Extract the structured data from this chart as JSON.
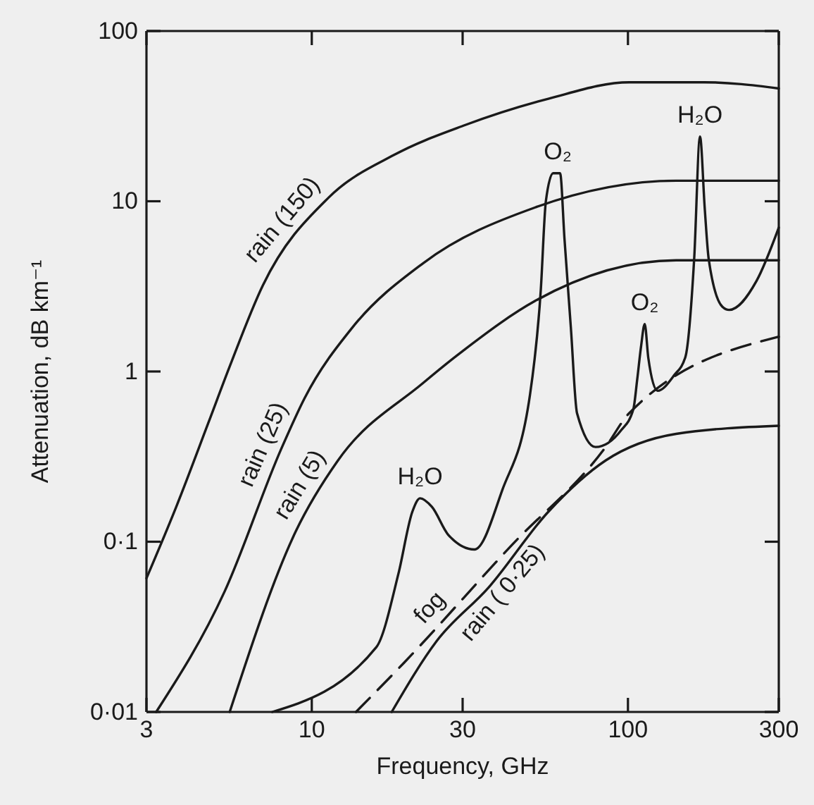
{
  "chart_data": {
    "type": "line",
    "xlabel": "Frequency, GHz",
    "ylabel": "Attenuation, dB km⁻¹",
    "log": "xy",
    "grid": false,
    "xlim": [
      3,
      300
    ],
    "xticks": [
      3,
      10,
      30,
      100,
      300
    ],
    "ylim": [
      0.01,
      100
    ],
    "yticks": [
      {
        "value": 0.01,
        "label": "0·01"
      },
      {
        "value": 0.1,
        "label": "0·1"
      },
      1,
      10,
      100
    ],
    "series": [
      {
        "name": "rain (150)",
        "color": "#1a1a1a",
        "x": [
          3,
          3.72,
          4.71,
          5.5,
          7.0,
          11.3,
          18.2,
          30.5,
          56,
          101,
          174,
          300
        ],
        "values": [
          0.061,
          0.159,
          0.5,
          1.07,
          3.2,
          10.5,
          18.7,
          28,
          40,
          50,
          50,
          46
        ]
      },
      {
        "name": "rain (25)",
        "color": "#1a1a1a",
        "x": [
          3.22,
          5.3,
          8.0,
          9.5,
          13.4,
          22.4,
          50.9,
          142,
          300
        ],
        "values": [
          0.01,
          0.051,
          0.35,
          0.7,
          1.8,
          4.3,
          9.2,
          13.2,
          13.2
        ]
      },
      {
        "name": "rain (5)",
        "color": "#1a1a1a",
        "x": [
          5.5,
          8.9,
          12.1,
          22.4,
          30.5,
          50.9,
          142,
          300
        ],
        "values": [
          0.01,
          0.115,
          0.3,
          0.85,
          1.35,
          2.6,
          4.5,
          4.5
        ]
      },
      {
        "name": "fog",
        "color": "#1a1a1a",
        "line_style": "dashed",
        "x": [
          13.8,
          19.6,
          42.8,
          85,
          101,
          300
        ],
        "values": [
          0.01,
          0.0195,
          0.095,
          0.36,
          0.57,
          1.6
        ]
      },
      {
        "name": "rain ( 0·25)",
        "color": "#1a1a1a",
        "x": [
          17.9,
          24.8,
          36.3,
          56,
          85,
          142,
          300
        ],
        "values": [
          0.01,
          0.026,
          0.054,
          0.15,
          0.3,
          0.43,
          0.48
        ]
      },
      {
        "color": "#1a1a1a",
        "x": [
          7.5,
          16,
          18.8,
          20.8,
          22,
          24,
          27,
          32.7,
          40,
          49,
          53,
          55,
          58,
          61,
          63,
          66,
          69,
          79,
          95,
          104,
          107,
          110,
          113,
          116,
          124,
          140,
          152,
          162,
          169,
          175,
          180,
          199,
          209,
          255,
          300
        ],
        "values": [
          0.01,
          0.024,
          0.065,
          0.15,
          0.18,
          0.16,
          0.11,
          0.09,
          0.2,
          0.73,
          3,
          10,
          14.6,
          14.6,
          6,
          1.8,
          0.57,
          0.36,
          0.45,
          0.6,
          0.9,
          1.4,
          1.9,
          1.2,
          0.77,
          0.95,
          1.22,
          4.6,
          24,
          9,
          4.6,
          2.4,
          2.3,
          3.4,
          7
        ]
      }
    ],
    "annotations": [
      {
        "text": "H₂O",
        "x": 22,
        "y": 0.18
      },
      {
        "text": "O₂",
        "x": 60,
        "y": 14.6
      },
      {
        "text": "O₂",
        "x": 113,
        "y": 1.9
      },
      {
        "text": "H₂O",
        "x": 169,
        "y": 24
      }
    ]
  }
}
